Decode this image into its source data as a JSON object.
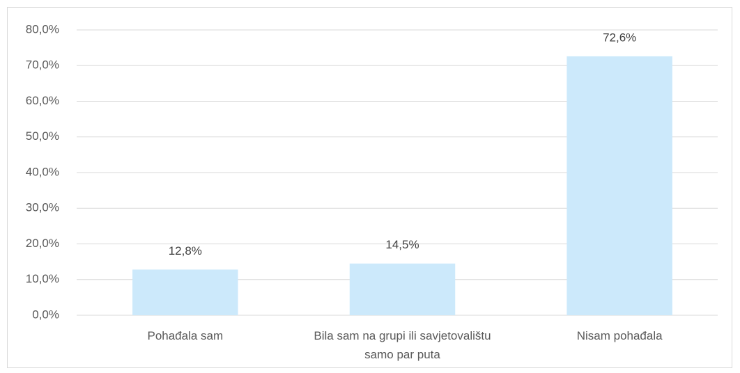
{
  "chart_data": {
    "type": "bar",
    "categories": [
      "Pohađala sam",
      "Bila sam na grupi ili savjetovalištu samo par puta",
      "Nisam pohađala"
    ],
    "values": [
      12.8,
      14.5,
      72.6
    ],
    "value_labels": [
      "12,8%",
      "14,5%",
      "72,6%"
    ],
    "color": "#cce9fb",
    "ylim": [
      0,
      80
    ],
    "yticks": [
      {
        "value": 0,
        "label": "0,0%"
      },
      {
        "value": 10,
        "label": "10,0%"
      },
      {
        "value": 20,
        "label": "20,0%"
      },
      {
        "value": 30,
        "label": "30,0%"
      },
      {
        "value": 40,
        "label": "40,0%"
      },
      {
        "value": 50,
        "label": "50,0%"
      },
      {
        "value": 60,
        "label": "60,0%"
      },
      {
        "value": 70,
        "label": "70,0%"
      },
      {
        "value": 80,
        "label": "80,0%"
      }
    ],
    "grid": true
  }
}
